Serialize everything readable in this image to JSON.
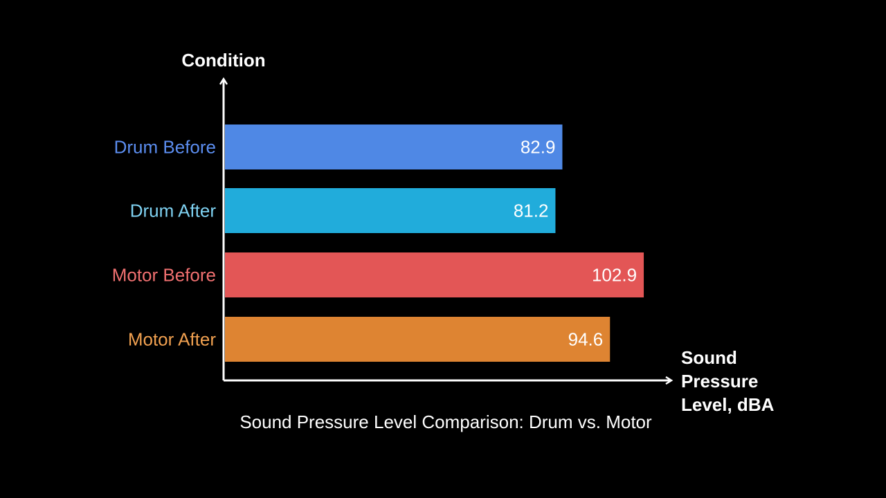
{
  "chart_data": {
    "type": "bar",
    "orientation": "horizontal",
    "title": "Sound Pressure Level Comparison: Drum vs. Motor",
    "ylabel": "Condition",
    "xlabel_lines": [
      "Sound",
      "Pressure",
      "Level, dBA"
    ],
    "categories": [
      "Drum Before",
      "Drum After",
      "Motor Before",
      "Motor After"
    ],
    "values": [
      82.9,
      81.2,
      102.9,
      94.6
    ],
    "value_labels": [
      "82.9",
      "81.2",
      "102.9",
      "94.6"
    ],
    "colors": [
      "#4F88E5",
      "#21ACDB",
      "#E35656",
      "#DE8432"
    ],
    "label_colors": [
      "#5B8DEF",
      "#7FD2F2",
      "#F07070",
      "#F0A050"
    ],
    "xlim": [
      0,
      108
    ],
    "grid": false,
    "legend": "none"
  }
}
